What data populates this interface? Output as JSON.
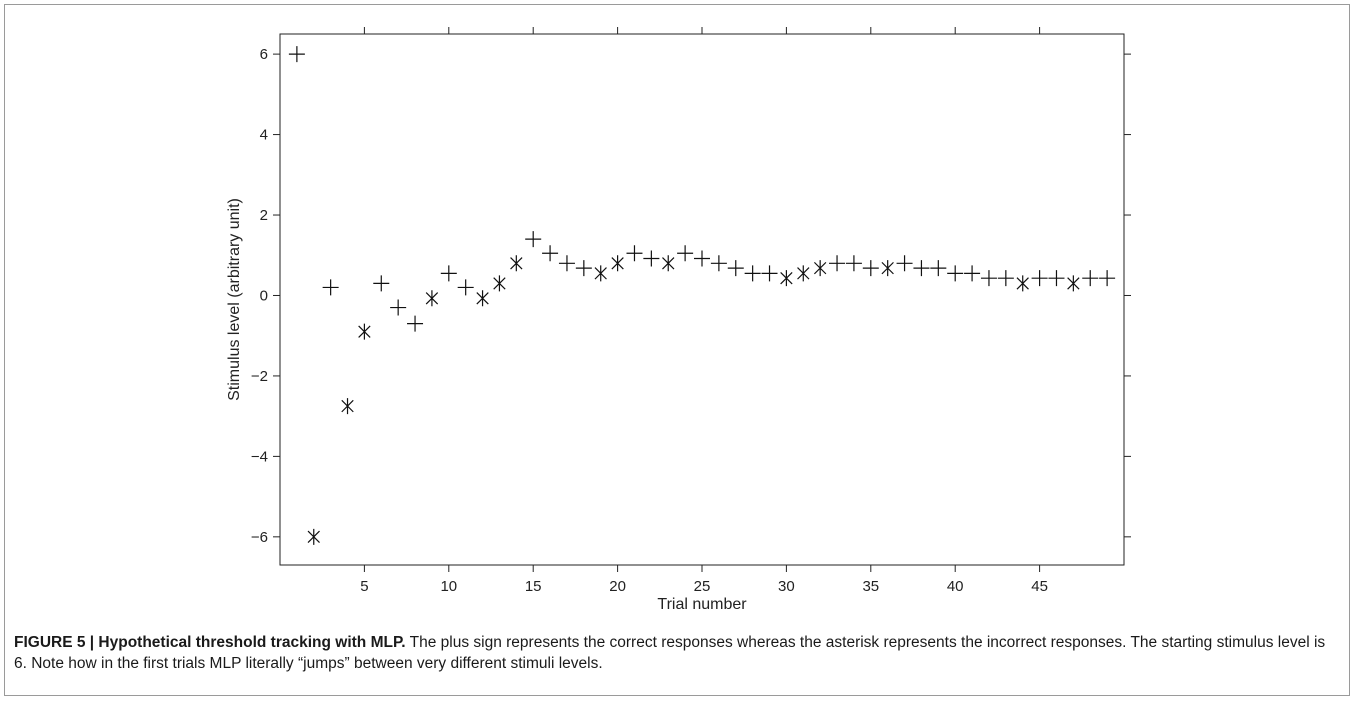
{
  "chart_data": {
    "type": "scatter",
    "xlabel": "Trial number",
    "ylabel": "Stimulus level (arbitrary unit)",
    "xlim": [
      0,
      50
    ],
    "ylim": [
      -6.7,
      6.5
    ],
    "xticks": [
      5,
      10,
      15,
      20,
      25,
      30,
      35,
      40,
      45
    ],
    "yticks": [
      -6,
      -4,
      -2,
      0,
      2,
      4,
      6
    ],
    "grid": false,
    "legend": "none",
    "markers": {
      "correct": "plus",
      "incorrect": "asterisk"
    },
    "points": [
      {
        "x": 1,
        "y": 6.0,
        "m": "plus"
      },
      {
        "x": 2,
        "y": -6.0,
        "m": "asterisk"
      },
      {
        "x": 3,
        "y": 0.2,
        "m": "plus"
      },
      {
        "x": 4,
        "y": -2.75,
        "m": "asterisk"
      },
      {
        "x": 5,
        "y": -0.9,
        "m": "asterisk"
      },
      {
        "x": 6,
        "y": 0.3,
        "m": "plus"
      },
      {
        "x": 7,
        "y": -0.3,
        "m": "plus"
      },
      {
        "x": 8,
        "y": -0.7,
        "m": "plus"
      },
      {
        "x": 9,
        "y": -0.07,
        "m": "asterisk"
      },
      {
        "x": 10,
        "y": 0.55,
        "m": "plus"
      },
      {
        "x": 11,
        "y": 0.2,
        "m": "plus"
      },
      {
        "x": 12,
        "y": -0.07,
        "m": "asterisk"
      },
      {
        "x": 13,
        "y": 0.3,
        "m": "asterisk"
      },
      {
        "x": 14,
        "y": 0.8,
        "m": "asterisk"
      },
      {
        "x": 15,
        "y": 1.4,
        "m": "plus"
      },
      {
        "x": 16,
        "y": 1.05,
        "m": "plus"
      },
      {
        "x": 17,
        "y": 0.8,
        "m": "plus"
      },
      {
        "x": 18,
        "y": 0.68,
        "m": "plus"
      },
      {
        "x": 19,
        "y": 0.55,
        "m": "asterisk"
      },
      {
        "x": 20,
        "y": 0.8,
        "m": "asterisk"
      },
      {
        "x": 21,
        "y": 1.05,
        "m": "plus"
      },
      {
        "x": 22,
        "y": 0.92,
        "m": "plus"
      },
      {
        "x": 23,
        "y": 0.8,
        "m": "asterisk"
      },
      {
        "x": 24,
        "y": 1.05,
        "m": "plus"
      },
      {
        "x": 25,
        "y": 0.92,
        "m": "plus"
      },
      {
        "x": 26,
        "y": 0.8,
        "m": "plus"
      },
      {
        "x": 27,
        "y": 0.68,
        "m": "plus"
      },
      {
        "x": 28,
        "y": 0.55,
        "m": "plus"
      },
      {
        "x": 29,
        "y": 0.55,
        "m": "plus"
      },
      {
        "x": 30,
        "y": 0.43,
        "m": "asterisk"
      },
      {
        "x": 31,
        "y": 0.55,
        "m": "asterisk"
      },
      {
        "x": 32,
        "y": 0.68,
        "m": "asterisk"
      },
      {
        "x": 33,
        "y": 0.8,
        "m": "plus"
      },
      {
        "x": 34,
        "y": 0.8,
        "m": "plus"
      },
      {
        "x": 35,
        "y": 0.68,
        "m": "plus"
      },
      {
        "x": 36,
        "y": 0.68,
        "m": "asterisk"
      },
      {
        "x": 37,
        "y": 0.8,
        "m": "plus"
      },
      {
        "x": 38,
        "y": 0.68,
        "m": "plus"
      },
      {
        "x": 39,
        "y": 0.68,
        "m": "plus"
      },
      {
        "x": 40,
        "y": 0.55,
        "m": "plus"
      },
      {
        "x": 41,
        "y": 0.55,
        "m": "plus"
      },
      {
        "x": 42,
        "y": 0.43,
        "m": "plus"
      },
      {
        "x": 43,
        "y": 0.43,
        "m": "plus"
      },
      {
        "x": 44,
        "y": 0.3,
        "m": "asterisk"
      },
      {
        "x": 45,
        "y": 0.43,
        "m": "plus"
      },
      {
        "x": 46,
        "y": 0.43,
        "m": "plus"
      },
      {
        "x": 47,
        "y": 0.3,
        "m": "asterisk"
      },
      {
        "x": 48,
        "y": 0.43,
        "m": "plus"
      },
      {
        "x": 49,
        "y": 0.43,
        "m": "plus"
      }
    ]
  },
  "caption": {
    "label": "FIGURE 5 | Hypothetical threshold tracking with MLP.",
    "text": " The plus sign represents the correct responses whereas the asterisk represents the incorrect responses. The starting stimulus level is 6. Note how in the first trials MLP literally “jumps” between very different stimuli levels."
  }
}
